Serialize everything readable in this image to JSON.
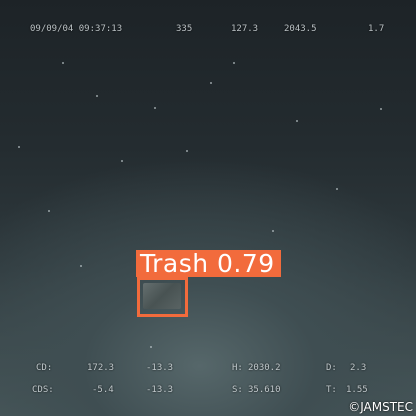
{
  "osd_top": {
    "datetime": "09/09/04 09:37:13",
    "field_1": "335",
    "field_2": "127.3",
    "field_3": "2043.5",
    "field_4": "1.7"
  },
  "osd_bottom": {
    "row1": {
      "label_a": "CD:",
      "val_a": "172.3",
      "val_b": "-13.3",
      "label_c": "H:",
      "val_c": "2030.2",
      "label_d": "D:",
      "val_d": "2.3"
    },
    "row2": {
      "label_a": "CDS:",
      "val_a": "-5.4",
      "val_b": "-13.3",
      "label_c": "S:",
      "val_c": "35.610",
      "label_d": "T:",
      "val_d": "1.55"
    }
  },
  "detection": {
    "label": "Trash",
    "score": "0.79",
    "text": "Trash 0.79",
    "color": "#f26b3c"
  },
  "copyright": "©JAMSTEC"
}
